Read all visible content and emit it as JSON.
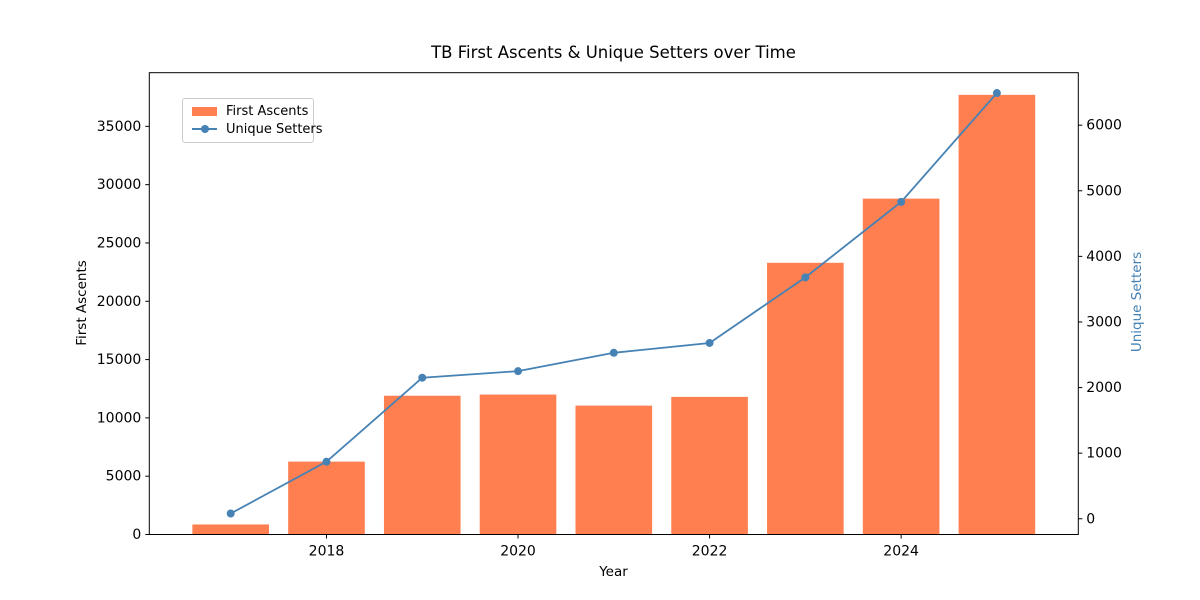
{
  "colors": {
    "bar": "#FF7F50",
    "line": "#4682B4",
    "axis": "#000000",
    "right_tick_text": "#4682B4",
    "legend_border": "#CCCCCC",
    "background": "#FFFFFF"
  },
  "chart_data": {
    "type": "combo-bar-line-dual-axis",
    "title": "TB First Ascents & Unique Setters over Time",
    "grid": false,
    "categories": [
      2017,
      2018,
      2019,
      2020,
      2021,
      2022,
      2023,
      2024,
      2025
    ],
    "series": [
      {
        "name": "First Ascents",
        "type": "bar",
        "axis": "left",
        "color_key": "bar",
        "values": [
          860,
          6250,
          11900,
          12000,
          11050,
          11800,
          23300,
          28800,
          37700
        ]
      },
      {
        "name": "Unique Setters",
        "type": "line",
        "axis": "right",
        "marker": "circle",
        "color_key": "line",
        "values": [
          80,
          870,
          2150,
          2250,
          2530,
          2680,
          3680,
          4830,
          6490
        ]
      }
    ],
    "axes": {
      "x": {
        "label": "Year",
        "ticks": [
          2018,
          2020,
          2022,
          2024
        ],
        "range": [
          2016.15,
          2025.85
        ]
      },
      "left": {
        "label": "First Ascents",
        "ticks": [
          0,
          5000,
          10000,
          15000,
          20000,
          25000,
          30000,
          35000
        ],
        "range": [
          0,
          39600
        ]
      },
      "right": {
        "label": "Unique Setters",
        "ticks": [
          0,
          1000,
          2000,
          3000,
          4000,
          5000,
          6000
        ],
        "range": [
          -240,
          6800
        ]
      }
    },
    "bar_width_units": 0.8,
    "legend": {
      "position": "upper-left"
    }
  }
}
